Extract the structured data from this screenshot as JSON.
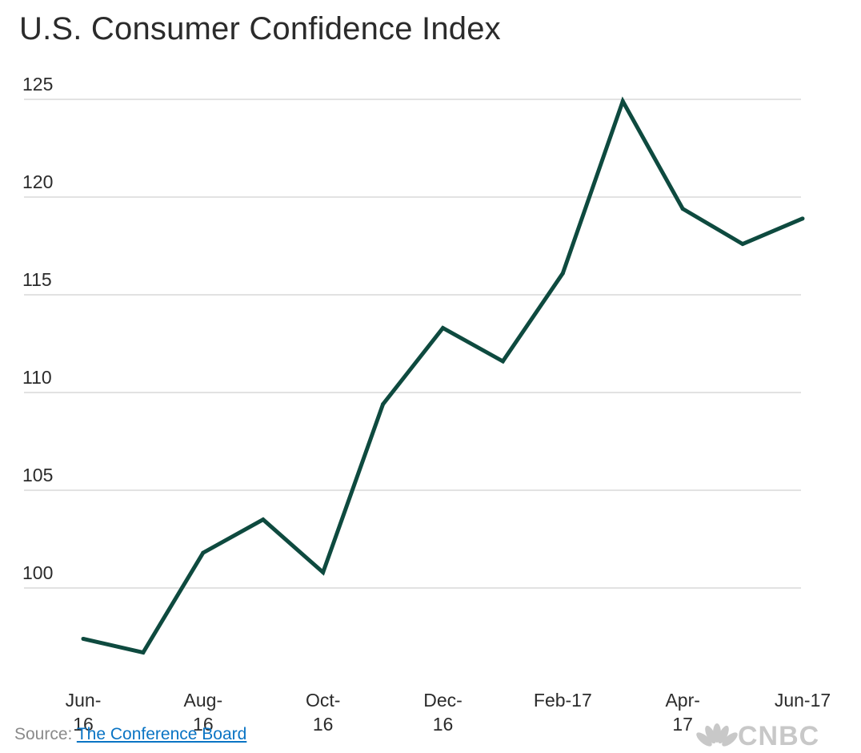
{
  "chart_data": {
    "type": "line",
    "title": "U.S. Consumer Confidence Index",
    "x": [
      "Jun-16",
      "Jul-16",
      "Aug-16",
      "Sep-16",
      "Oct-16",
      "Nov-16",
      "Dec-16",
      "Jan-17",
      "Feb-17",
      "Mar-17",
      "Apr-17",
      "May-17",
      "Jun-17"
    ],
    "x_tick_labels": [
      {
        "index": 0,
        "lines": [
          "Jun-",
          "16"
        ]
      },
      {
        "index": 2,
        "lines": [
          "Aug-",
          "16"
        ]
      },
      {
        "index": 4,
        "lines": [
          "Oct-",
          "16"
        ]
      },
      {
        "index": 6,
        "lines": [
          "Dec-",
          "16"
        ]
      },
      {
        "index": 8,
        "lines": [
          "Feb-17"
        ]
      },
      {
        "index": 10,
        "lines": [
          "Apr-",
          "17"
        ]
      },
      {
        "index": 12,
        "lines": [
          "Jun-17"
        ]
      }
    ],
    "series": [
      {
        "values": [
          97.4,
          96.7,
          101.8,
          103.5,
          100.8,
          109.4,
          113.3,
          111.6,
          116.1,
          124.9,
          119.4,
          117.6,
          118.9
        ]
      }
    ],
    "y_ticks": [
      100,
      105,
      110,
      115,
      120,
      125
    ],
    "ylim": [
      95,
      125
    ],
    "grid": true,
    "line_color": "#0e4a3f",
    "xlabel": "",
    "ylabel": ""
  },
  "source": {
    "label": "Source:",
    "link_text": "The Conference Board"
  },
  "logo": {
    "text": "CNBC",
    "icon": "peacock-icon"
  }
}
